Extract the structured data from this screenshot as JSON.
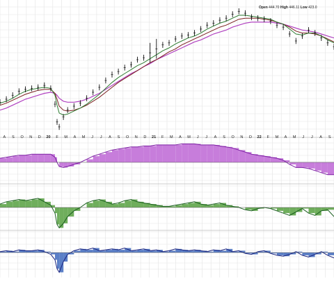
{
  "readout": {
    "open_label": "Open",
    "open_value": "444.70",
    "high_label": "High",
    "high_value": "446.11",
    "low_label": "Low",
    "low_value": "423.0"
  },
  "x_axis": {
    "labels": [
      "A",
      "S",
      "O",
      "N",
      "D",
      "20",
      "F",
      "M",
      "A",
      "M",
      "J",
      "J",
      "A",
      "S",
      "O",
      "N",
      "D",
      "21",
      "F",
      "M",
      "A",
      "M",
      "J",
      "J",
      "A",
      "S",
      "O",
      "N",
      "D",
      "22",
      "F",
      "M",
      "A",
      "M",
      "J",
      "J",
      "A",
      "S"
    ]
  },
  "colors": {
    "price_bars": "#111111",
    "ma_fast": "#2e7d32",
    "ma_mid": "#7a1f1f",
    "ma_slow": "#b040c0",
    "panel1_fill": "#c77ddb",
    "panel1_line": "#7b1fa2",
    "panel2_fill": "#6fae5c",
    "panel2_line": "#1b5e20",
    "panel3_fill": "#5b7fc7",
    "panel3_line": "#1a237e",
    "grid": "#e3e3e3",
    "zero_line": "#555555"
  },
  "chart_data": [
    {
      "type": "line",
      "name": "price",
      "x": [
        0,
        3,
        6,
        9,
        12,
        15,
        18,
        21,
        24,
        26,
        27,
        28,
        30,
        32,
        35,
        38,
        41,
        44,
        47,
        50,
        53,
        56,
        59,
        62,
        65,
        68,
        71,
        74,
        77,
        80,
        83,
        86,
        89,
        92,
        95,
        98,
        101,
        104,
        107,
        110,
        113,
        116,
        119,
        122,
        125,
        128,
        131,
        134,
        137,
        140,
        143,
        146,
        149,
        152,
        155,
        158
      ],
      "values": [
        120,
        123,
        127,
        131,
        133,
        134,
        135,
        137,
        134,
        118,
        100,
        95,
        105,
        112,
        116,
        119,
        124,
        130,
        135,
        142,
        148,
        151,
        155,
        158,
        163,
        165,
        170,
        174,
        178,
        180,
        184,
        187,
        188,
        190,
        194,
        198,
        200,
        203,
        205,
        209,
        212,
        210,
        206,
        205,
        204,
        202,
        198,
        196,
        189,
        182,
        187,
        193,
        190,
        185,
        180,
        176
      ],
      "ma_fast": [
        119,
        121,
        124,
        128,
        131,
        133,
        134,
        135,
        134,
        127,
        117,
        109,
        107,
        108,
        111,
        114,
        118,
        123,
        128,
        134,
        140,
        145,
        149,
        153,
        157,
        160,
        164,
        168,
        172,
        175,
        179,
        182,
        185,
        187,
        190,
        194,
        197,
        200,
        202,
        205,
        208,
        208,
        207,
        206,
        205,
        204,
        201,
        199,
        194,
        189,
        188,
        190,
        190,
        187,
        183,
        180
      ],
      "ma_mid": [
        117,
        119,
        122,
        125,
        128,
        130,
        132,
        133,
        133,
        129,
        123,
        116,
        112,
        111,
        112,
        114,
        117,
        121,
        125,
        130,
        135,
        140,
        144,
        148,
        152,
        156,
        160,
        163,
        167,
        171,
        174,
        178,
        181,
        184,
        187,
        190,
        193,
        196,
        198,
        201,
        204,
        205,
        205,
        205,
        204,
        203,
        201,
        199,
        196,
        192,
        190,
        190,
        189,
        187,
        184,
        181
      ],
      "ma_slow": [
        112,
        114,
        117,
        120,
        123,
        125,
        127,
        129,
        130,
        129,
        127,
        124,
        121,
        120,
        120,
        121,
        123,
        126,
        129,
        133,
        137,
        141,
        145,
        149,
        152,
        156,
        159,
        163,
        166,
        169,
        172,
        175,
        178,
        181,
        183,
        186,
        189,
        191,
        193,
        196,
        198,
        200,
        201,
        201,
        201,
        201,
        200,
        199,
        197,
        195,
        193,
        192,
        191,
        189,
        187,
        185
      ]
    },
    {
      "type": "area",
      "name": "indicator-1",
      "x": [
        0,
        3,
        6,
        9,
        12,
        15,
        18,
        21,
        24,
        26,
        27,
        28,
        30,
        32,
        35,
        38,
        41,
        44,
        47,
        50,
        53,
        56,
        59,
        62,
        65,
        68,
        71,
        74,
        77,
        80,
        83,
        86,
        89,
        92,
        95,
        98,
        101,
        104,
        107,
        110,
        113,
        116,
        119,
        122,
        125,
        128,
        131,
        134,
        137,
        140,
        143,
        146,
        149,
        152,
        155,
        158
      ],
      "values": [
        4,
        5,
        6,
        7,
        7,
        8,
        8,
        8,
        8,
        5,
        0,
        -4,
        -5,
        -4,
        -2,
        0,
        3,
        6,
        8,
        10,
        12,
        13,
        14,
        15,
        15,
        16,
        16,
        17,
        17,
        17,
        17,
        18,
        18,
        18,
        17,
        17,
        17,
        16,
        15,
        14,
        12,
        10,
        8,
        7,
        6,
        5,
        4,
        2,
        -2,
        -5,
        -5,
        -6,
        -8,
        -10,
        -12,
        -12
      ]
    },
    {
      "type": "area",
      "name": "indicator-2",
      "x": [
        0,
        3,
        6,
        9,
        12,
        15,
        18,
        21,
        24,
        26,
        27,
        28,
        30,
        32,
        35,
        38,
        41,
        44,
        47,
        50,
        53,
        56,
        59,
        62,
        65,
        68,
        71,
        74,
        77,
        80,
        83,
        86,
        89,
        92,
        95,
        98,
        101,
        104,
        107,
        110,
        113,
        116,
        119,
        122,
        125,
        128,
        131,
        134,
        137,
        140,
        143,
        146,
        149,
        152,
        155,
        158
      ],
      "values": [
        3,
        5,
        6,
        7,
        6,
        7,
        8,
        5,
        2,
        -5,
        -15,
        -18,
        -14,
        -8,
        -3,
        0,
        4,
        6,
        7,
        5,
        3,
        4,
        6,
        7,
        5,
        4,
        3,
        2,
        1,
        1,
        2,
        3,
        4,
        5,
        3,
        2,
        3,
        4,
        2,
        1,
        0,
        -2,
        -3,
        -1,
        0,
        -1,
        -3,
        -5,
        -7,
        -4,
        -1,
        -5,
        -7,
        -3,
        -2,
        -8
      ]
    },
    {
      "type": "area",
      "name": "indicator-3",
      "x": [
        0,
        3,
        6,
        9,
        12,
        15,
        18,
        21,
        24,
        26,
        27,
        28,
        30,
        32,
        35,
        38,
        41,
        44,
        47,
        50,
        53,
        56,
        59,
        62,
        65,
        68,
        71,
        74,
        77,
        80,
        83,
        86,
        89,
        92,
        95,
        98,
        101,
        104,
        107,
        110,
        113,
        116,
        119,
        122,
        125,
        128,
        131,
        134,
        137,
        140,
        143,
        146,
        149,
        152,
        155,
        158
      ],
      "values": [
        1,
        2,
        1,
        3,
        2,
        2,
        3,
        1,
        -2,
        -8,
        -18,
        -22,
        -10,
        -2,
        2,
        4,
        3,
        5,
        2,
        3,
        4,
        3,
        5,
        2,
        3,
        4,
        2,
        3,
        1,
        2,
        4,
        3,
        2,
        3,
        2,
        1,
        3,
        2,
        4,
        1,
        2,
        -1,
        -2,
        1,
        2,
        -1,
        -3,
        -4,
        -2,
        1,
        -3,
        -5,
        -2,
        1,
        -3,
        -6
      ]
    }
  ]
}
